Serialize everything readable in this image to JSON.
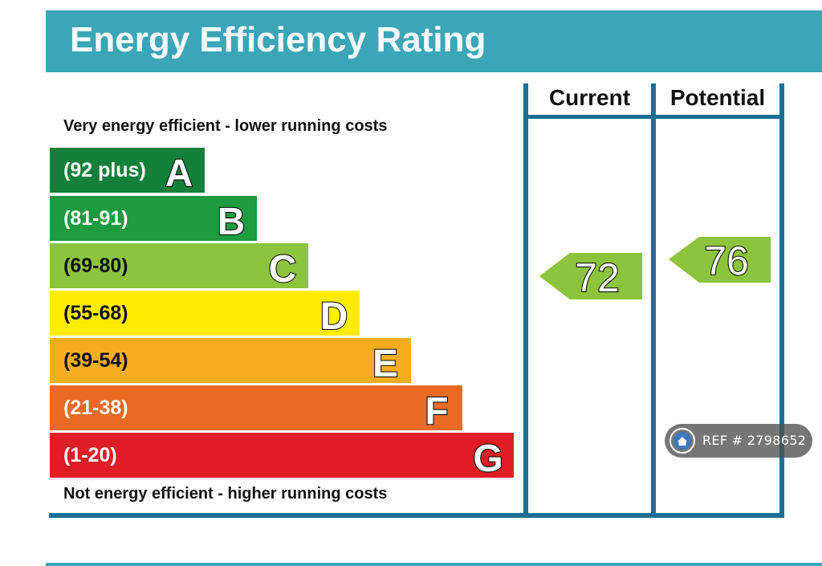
{
  "title": "Energy Efficiency Rating",
  "top_caption": "Very energy efficient - lower running costs",
  "bottom_caption": "Not energy efficient - higher running costs",
  "columns": {
    "current": "Current",
    "potential": "Potential"
  },
  "chart_data": {
    "type": "bar",
    "title": "Energy Efficiency Rating",
    "categories": [
      "A",
      "B",
      "C",
      "D",
      "E",
      "F",
      "G"
    ],
    "bands": [
      {
        "letter": "A",
        "range": "(92 plus)",
        "color": "#12803a"
      },
      {
        "letter": "B",
        "range": "(81-91)",
        "color": "#1c9b3f"
      },
      {
        "letter": "C",
        "range": "(69-80)",
        "color": "#8cc43d"
      },
      {
        "letter": "D",
        "range": "(55-68)",
        "color": "#ffed00"
      },
      {
        "letter": "E",
        "range": "(39-54)",
        "color": "#f5ad1f"
      },
      {
        "letter": "F",
        "range": "(21-38)",
        "color": "#ea6a24"
      },
      {
        "letter": "G",
        "range": "(1-20)",
        "color": "#e01c24"
      }
    ],
    "current": {
      "value": 72,
      "band": "C",
      "color": "#8cc43d"
    },
    "potential": {
      "value": 76,
      "band": "C",
      "color": "#8cc43d"
    }
  },
  "ref_badge": {
    "text": "REF # 2798652",
    "icon": "home-icon"
  },
  "colors": {
    "title_bar": "#3ba6b8",
    "frame": "#1b6f92"
  }
}
